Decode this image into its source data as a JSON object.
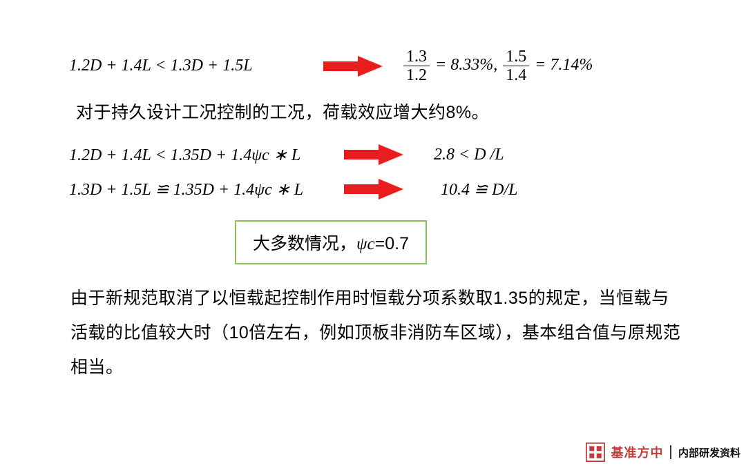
{
  "row1": {
    "left_html": "1.2<span class='it'>D</span> + 1.4<span class='it'>L</span> &lt; 1.3<span class='it'>D</span> + 1.5<span class='it'>L</span>",
    "frac1_num": "1.3",
    "frac1_den": "1.2",
    "frac1_val": "= 8.33%,",
    "frac2_num": "1.5",
    "frac2_den": "1.4",
    "frac2_val": "= 7.14%"
  },
  "text1": "对于持久设计工况控制的工况，荷载效应增大约8%。",
  "row2": {
    "left_html": "1.2<span class='it'>D</span> + 1.4<span class='it'>L</span> &lt; 1.35<span class='it'>D</span> + 1.4<span class='it'>ψc</span> ∗ <span class='it'>L</span>",
    "right_html": "2.8 &lt; <span class='it'>D</span> /<span class='it'>L</span>"
  },
  "row3": {
    "left_html": "1.3<span class='it'>D</span> + 1.5<span class='it'>L</span> ≌ 1.35<span class='it'>D</span> + 1.4<span class='it'>ψc</span> ∗ <span class='it'>L</span>",
    "right_html": "10.4 ≌ <span class='it'>D</span>/<span class='it'>L</span>"
  },
  "box": {
    "prefix": "大多数情况，",
    "psi": "ψc",
    "value": "=0.7"
  },
  "para": "由于新规范取消了以恒载起控制作用时恒载分项系数取1.35的规定，当恒载与活载的比值较大时（10倍左右，例如顶板非消防车区域），基本组合值与原规范相当。",
  "footer": {
    "brand": "基准方中",
    "doc_label": "内部研发资料"
  },
  "style": {
    "arrow_fill": "#e81e1e",
    "box_border": "#8cbf5e",
    "brand_color": "#c23b3b",
    "bg": "#ffffff"
  }
}
